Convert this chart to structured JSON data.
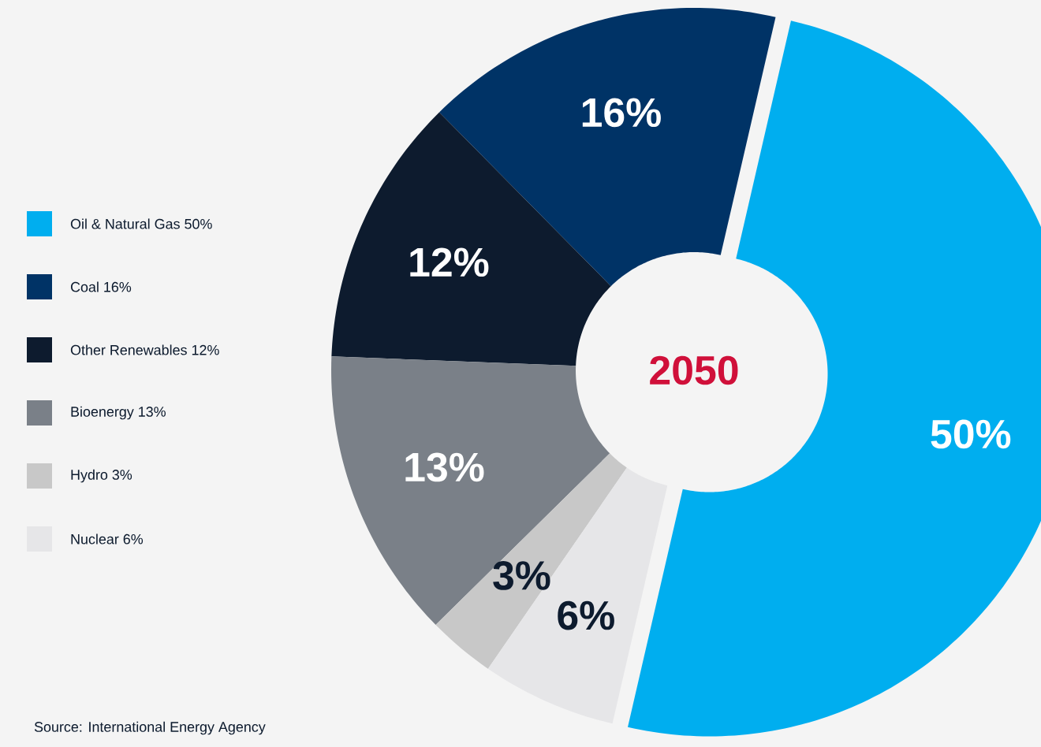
{
  "chart_data": {
    "type": "donut",
    "title": "2050",
    "categories": [
      "Oil & Natural Gas 50%",
      "Coal 16%",
      "Other Renewables 12%",
      "Bioenergy 13%",
      "Hydro 3%",
      "Nuclear 6%"
    ],
    "values": [
      50,
      16,
      12,
      13,
      3,
      6
    ],
    "value_labels": [
      "50%",
      "16%",
      "12%",
      "13%",
      "3%",
      "6%"
    ],
    "colors": [
      "#00aeef",
      "#003366",
      "#0d1b2e",
      "#7a8088",
      "#c8c8c8",
      "#e6e6e8"
    ],
    "legend": "left",
    "annotations": [
      "Source: International Energy Agency"
    ]
  }
}
